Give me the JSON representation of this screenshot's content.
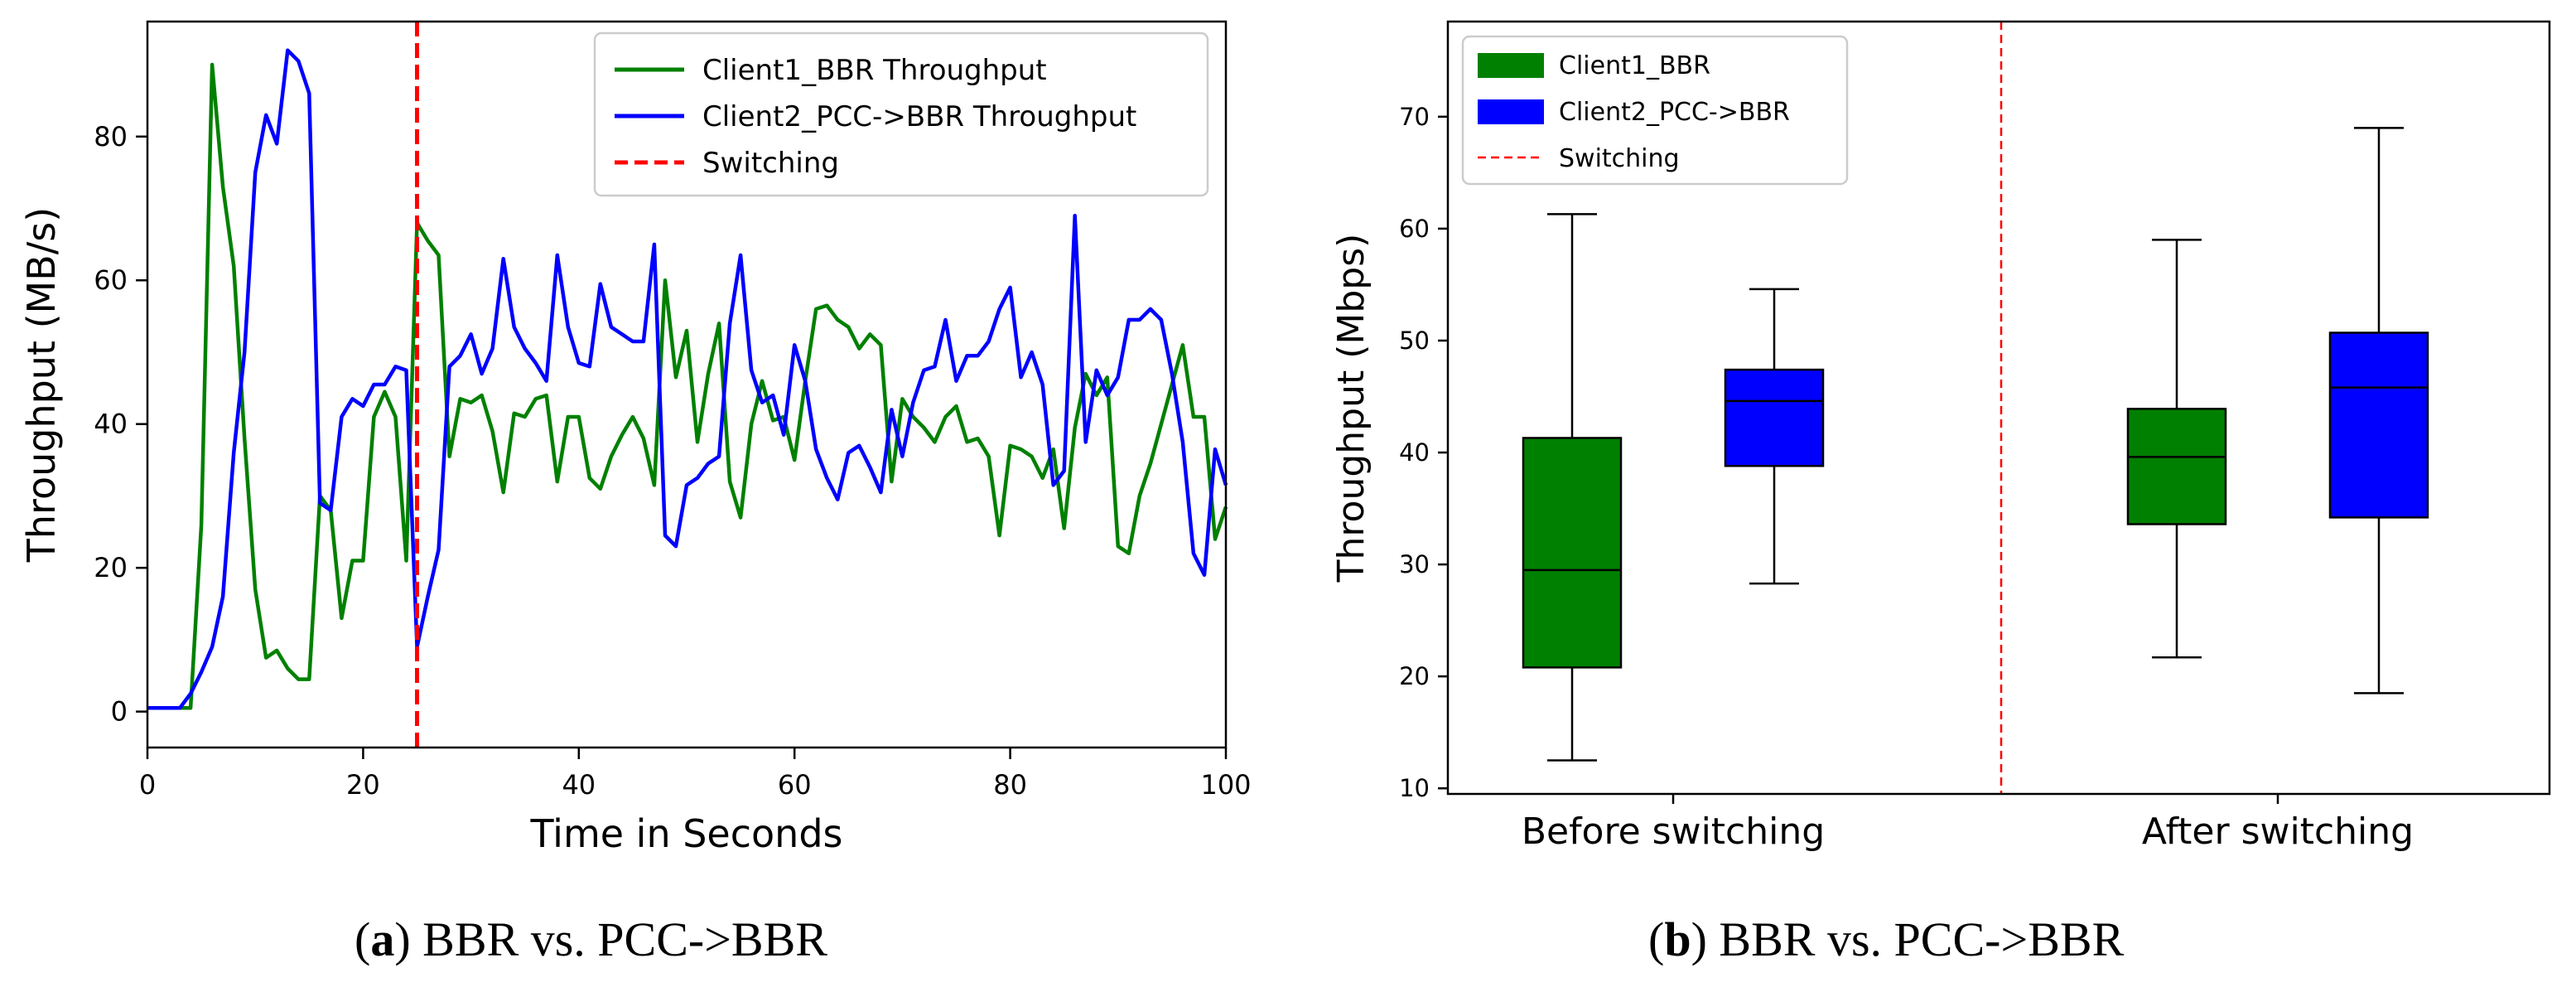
{
  "captions": {
    "a": {
      "open": "(",
      "label": "a",
      "close": ")",
      "text": " BBR vs. PCC->BBR"
    },
    "b": {
      "open": "(",
      "label": "b",
      "close": ")",
      "text": " BBR vs. PCC->BBR"
    }
  },
  "chart_data": [
    {
      "type": "line",
      "panel": "a",
      "title": "",
      "xlabel": "Time in Seconds",
      "ylabel": "Throughput (MB/s)",
      "xlim": [
        0,
        100
      ],
      "ylim": [
        -5,
        96
      ],
      "xticks": [
        0,
        20,
        40,
        60,
        80,
        100
      ],
      "yticks": [
        0,
        20,
        40,
        60,
        80
      ],
      "legend_position": "top-right",
      "switch_x": 25,
      "switch_label": "Switching",
      "series": [
        {
          "name": "Client1_BBR Throughput",
          "color": "#008000",
          "x": [
            0,
            1,
            2,
            3,
            4,
            5,
            6,
            7,
            8,
            9,
            10,
            11,
            12,
            13,
            14,
            15,
            16,
            17,
            18,
            19,
            20,
            21,
            22,
            23,
            24,
            25,
            26,
            27,
            28,
            29,
            30,
            31,
            32,
            33,
            34,
            35,
            36,
            37,
            38,
            39,
            40,
            41,
            42,
            43,
            44,
            45,
            46,
            47,
            48,
            49,
            50,
            51,
            52,
            53,
            54,
            55,
            56,
            57,
            58,
            59,
            60,
            61,
            62,
            63,
            64,
            65,
            66,
            67,
            68,
            69,
            70,
            71,
            72,
            73,
            74,
            75,
            76,
            77,
            78,
            79,
            80,
            81,
            82,
            83,
            84,
            85,
            86,
            87,
            88,
            89,
            90,
            91,
            92,
            93,
            94,
            95,
            96,
            97,
            98,
            99,
            100
          ],
          "values": [
            0.5,
            0.5,
            0.5,
            0.5,
            0.5,
            26,
            90,
            73,
            62,
            38,
            17,
            7.5,
            8.5,
            6,
            4.5,
            4.5,
            30,
            28,
            13,
            21,
            21,
            41,
            44.5,
            41,
            21,
            68,
            65.5,
            63.5,
            35.5,
            43.5,
            43,
            44,
            39,
            30.5,
            41.5,
            41,
            43.5,
            44,
            32,
            41,
            41,
            32.5,
            31,
            35.5,
            38.5,
            41,
            38,
            31.5,
            60,
            46.5,
            53,
            37.5,
            47,
            54,
            32,
            27,
            40,
            46,
            40.5,
            41,
            35,
            46,
            56,
            56.5,
            54.5,
            53.5,
            50.5,
            52.5,
            51,
            32,
            43.5,
            41,
            39.5,
            37.5,
            41,
            42.5,
            37.5,
            38,
            35.5,
            24.5,
            37,
            36.5,
            35.5,
            32.5,
            36.5,
            25.5,
            39.5,
            47,
            44,
            46.5,
            23,
            22,
            30,
            34.5,
            40,
            45.5,
            51,
            41,
            41,
            24,
            28.5
          ]
        },
        {
          "name": "Client2_PCC->BBR Throughput",
          "color": "#0000ff",
          "x": [
            0,
            1,
            2,
            3,
            4,
            5,
            6,
            7,
            8,
            9,
            10,
            11,
            12,
            13,
            14,
            15,
            16,
            17,
            18,
            19,
            20,
            21,
            22,
            23,
            24,
            25,
            26,
            27,
            28,
            29,
            30,
            31,
            32,
            33,
            34,
            35,
            36,
            37,
            38,
            39,
            40,
            41,
            42,
            43,
            44,
            45,
            46,
            47,
            48,
            49,
            50,
            51,
            52,
            53,
            54,
            55,
            56,
            57,
            58,
            59,
            60,
            61,
            62,
            63,
            64,
            65,
            66,
            67,
            68,
            69,
            70,
            71,
            72,
            73,
            74,
            75,
            76,
            77,
            78,
            79,
            80,
            81,
            82,
            83,
            84,
            85,
            86,
            87,
            88,
            89,
            90,
            91,
            92,
            93,
            94,
            95,
            96,
            97,
            98,
            99,
            100
          ],
          "values": [
            0.5,
            0.5,
            0.5,
            0.5,
            2.5,
            5.5,
            9,
            16,
            36,
            50,
            75,
            83,
            79,
            92,
            90.5,
            86,
            29,
            28,
            41,
            43.5,
            42.5,
            45.5,
            45.5,
            48,
            47.5,
            9,
            16,
            22.5,
            48,
            49.5,
            52.5,
            47,
            50.5,
            63,
            53.5,
            50.5,
            48.5,
            46,
            63.5,
            53.5,
            48.5,
            48,
            59.5,
            53.5,
            52.5,
            51.5,
            51.5,
            65,
            24.5,
            23,
            31.5,
            32.5,
            34.5,
            35.5,
            54,
            63.5,
            47.5,
            43,
            44,
            38.5,
            51,
            46,
            36.5,
            32.5,
            29.5,
            36,
            37,
            34,
            30.5,
            42,
            35.5,
            43,
            47.5,
            48,
            54.5,
            46,
            49.5,
            49.5,
            51.5,
            56,
            59,
            46.5,
            50,
            45.5,
            31.5,
            33.5,
            69,
            37.5,
            47.5,
            44,
            46.5,
            54.5,
            54.5,
            56,
            54.5,
            47,
            37.5,
            22,
            19,
            36.5,
            31.5
          ]
        }
      ]
    },
    {
      "type": "box",
      "panel": "b",
      "title": "",
      "xlabel": "",
      "ylabel": "Throughput (Mbps)",
      "ylim": [
        9.5,
        78.5
      ],
      "yticks": [
        10,
        20,
        30,
        40,
        50,
        60,
        70
      ],
      "groups": [
        "Before switching",
        "After switching"
      ],
      "legend_position": "top-left",
      "switch_label": "Switching",
      "series": [
        {
          "name": "Client1_BBR",
          "color": "#008000",
          "boxes": [
            {
              "group": "Before switching",
              "whisker_low": 12.5,
              "q1": 20.8,
              "median": 29.5,
              "q3": 41.3,
              "whisker_high": 61.3
            },
            {
              "group": "After switching",
              "whisker_low": 21.7,
              "q1": 33.6,
              "median": 39.6,
              "q3": 43.9,
              "whisker_high": 59
            }
          ]
        },
        {
          "name": "Client2_PCC->BBR",
          "color": "#0000ff",
          "boxes": [
            {
              "group": "Before switching",
              "whisker_low": 28.3,
              "q1": 38.8,
              "median": 44.6,
              "q3": 47.4,
              "whisker_high": 54.6
            },
            {
              "group": "After switching",
              "whisker_low": 18.5,
              "q1": 34.2,
              "median": 45.8,
              "q3": 50.7,
              "whisker_high": 69
            }
          ]
        }
      ]
    }
  ]
}
